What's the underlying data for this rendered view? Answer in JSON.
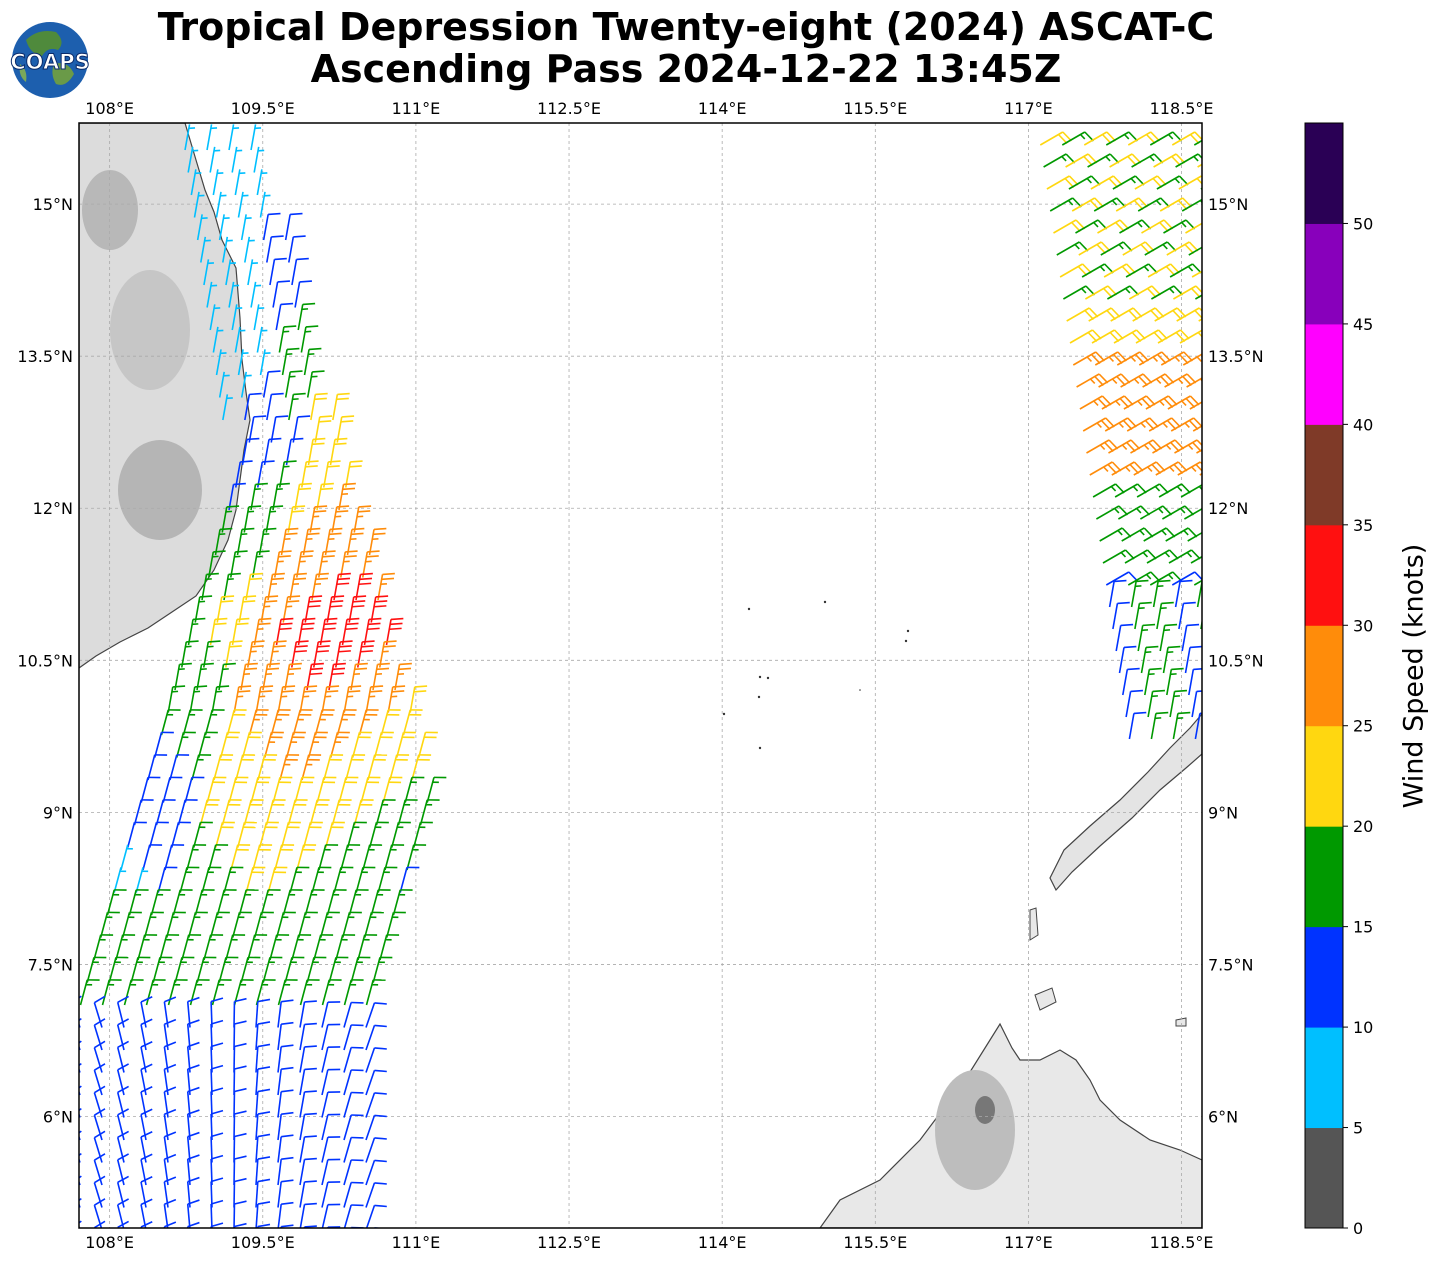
{
  "title": {
    "line1": "Tropical Depression Twenty-eight (2024) ASCAT-C",
    "line2": "Ascending Pass 2024-12-22 13:45Z"
  },
  "logo": {
    "text": "COAPS",
    "icon": "globe-icon"
  },
  "map": {
    "lon_range": [
      107.7,
      118.7
    ],
    "lat_range": [
      4.9,
      15.8
    ],
    "lon_ticks": [
      "108°E",
      "109.5°E",
      "111°E",
      "112.5°E",
      "114°E",
      "115.5°E",
      "117°E",
      "118.5°E"
    ],
    "lat_ticks": [
      "15°N",
      "13.5°N",
      "12°N",
      "10.5°N",
      "9°N",
      "7.5°N",
      "6°N"
    ],
    "gridlines": true
  },
  "colorbar": {
    "label": "Wind Speed (knots)",
    "ticks": [
      "0",
      "5",
      "10",
      "15",
      "20",
      "25",
      "30",
      "35",
      "40",
      "45",
      "50"
    ],
    "colors": [
      "#555555",
      "#00bfff",
      "#0033ff",
      "#009900",
      "#ffd710",
      "#ff8c0a",
      "#ff1010",
      "#7f3a28",
      "#ff00ff",
      "#8800bb",
      "#2a0055"
    ]
  }
}
